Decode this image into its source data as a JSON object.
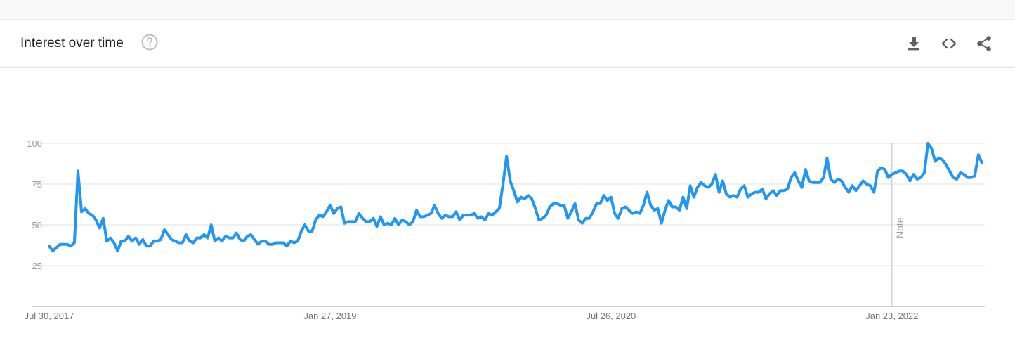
{
  "header": {
    "title": "Interest over time",
    "help_icon": "help-circle-icon",
    "tools": [
      {
        "name": "download-icon"
      },
      {
        "name": "embed-code-icon"
      },
      {
        "name": "share-icon"
      }
    ]
  },
  "colors": {
    "line": "#2196f3",
    "grid": "#e0e0e0",
    "axis": "#9e9e9e"
  },
  "chart_data": {
    "type": "line",
    "title": "",
    "xlabel": "",
    "ylabel": "",
    "ylim": [
      0,
      100
    ],
    "yticks": [
      25,
      50,
      75,
      100
    ],
    "grid": true,
    "x_range": [
      "Jul 30, 2017",
      "Jul 2022"
    ],
    "xticks": [
      {
        "label": "Jul 30, 2017",
        "at": "2017-07-30"
      },
      {
        "label": "Jan 27, 2019",
        "at": "2019-01-27"
      },
      {
        "label": "Jul 26, 2020",
        "at": "2020-07-26"
      },
      {
        "label": "Jan 23, 2022",
        "at": "2022-01-23"
      }
    ],
    "annotations": [
      {
        "label": "Note",
        "at": "2022-01-23"
      }
    ],
    "series": [
      {
        "values": [
          37,
          34,
          36,
          38,
          38,
          38,
          37,
          39,
          83,
          58,
          60,
          57,
          56,
          53,
          48,
          54,
          40,
          42,
          39,
          34,
          40,
          40,
          43,
          40,
          42,
          38,
          41,
          37,
          37,
          40,
          40,
          41,
          47,
          44,
          41,
          40,
          39,
          39,
          44,
          40,
          39,
          42,
          42,
          44,
          42,
          50,
          40,
          42,
          40,
          43,
          42,
          42,
          45,
          41,
          40,
          43,
          44,
          41,
          38,
          40,
          40,
          38,
          38,
          39,
          39,
          39,
          37,
          40,
          39,
          40,
          46,
          50,
          46,
          46,
          53,
          56,
          55,
          58,
          62,
          57,
          60,
          61,
          51,
          52,
          52,
          52,
          57,
          54,
          52,
          52,
          54,
          49,
          55,
          50,
          51,
          50,
          54,
          50,
          53,
          52,
          50,
          52,
          59,
          55,
          55,
          56,
          57,
          62,
          57,
          54,
          56,
          55,
          55,
          58,
          53,
          56,
          56,
          56,
          57,
          54,
          55,
          53,
          57,
          56,
          58,
          60,
          75,
          92,
          77,
          71,
          64,
          67,
          66,
          68,
          66,
          60,
          53,
          54,
          56,
          61,
          63,
          63,
          62,
          62,
          54,
          58,
          63,
          53,
          51,
          54,
          54,
          58,
          63,
          63,
          68,
          65,
          67,
          57,
          54,
          60,
          61,
          59,
          57,
          58,
          57,
          62,
          70,
          62,
          59,
          60,
          51,
          59,
          65,
          61,
          61,
          59,
          67,
          60,
          74,
          67,
          73,
          76,
          74,
          73,
          75,
          81,
          70,
          77,
          69,
          67,
          68,
          67,
          72,
          74,
          67,
          69,
          70,
          70,
          72,
          66,
          69,
          71,
          68,
          71,
          71,
          72,
          79,
          82,
          77,
          73,
          84,
          77,
          76,
          76,
          76,
          79,
          91,
          78,
          76,
          78,
          77,
          73,
          70,
          74,
          71,
          74,
          77,
          75,
          74,
          70,
          83,
          85,
          84,
          79,
          81,
          82,
          83,
          83,
          81,
          77,
          81,
          78,
          79,
          82,
          100,
          97,
          89,
          91,
          90,
          87,
          83,
          79,
          78,
          82,
          81,
          79,
          79,
          80,
          93,
          88
        ]
      }
    ]
  }
}
